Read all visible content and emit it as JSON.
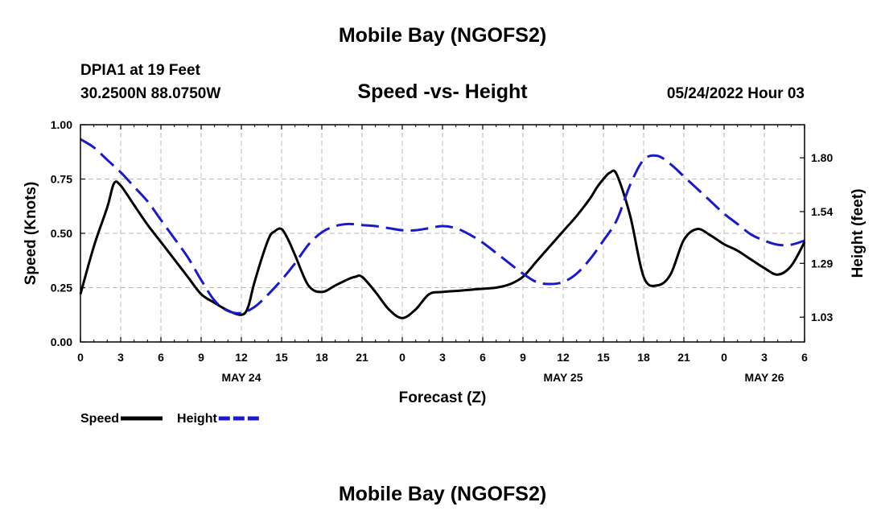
{
  "page": {
    "title_top": "Mobile Bay (NGOFS2)",
    "title_bottom": "Mobile Bay (NGOFS2)",
    "station": "DPIA1 at 19 Feet",
    "coords": "30.2500N  88.0750W",
    "timestamp": "05/24/2022 Hour 03"
  },
  "chart_data": {
    "type": "line",
    "title": "Speed -vs- Height",
    "xlabel": "Forecast (Z)",
    "ylabel_left": "Speed (Knots)",
    "ylabel_right": "Height (feet)",
    "x_unit": "forecast hour from 00Z May 24",
    "xlim": [
      0,
      54
    ],
    "ylim_left": [
      0,
      1
    ],
    "ylim_right": [
      0.91,
      1.96
    ],
    "grid": true,
    "legend_position": "bottom-left",
    "x_tick_values": [
      0,
      3,
      6,
      9,
      12,
      15,
      18,
      21,
      24,
      27,
      30,
      33,
      36,
      39,
      42,
      45,
      48,
      51,
      54
    ],
    "x_tick_labels": [
      "0",
      "3",
      "6",
      "9",
      "12",
      "15",
      "18",
      "21",
      "0",
      "3",
      "6",
      "9",
      "12",
      "15",
      "18",
      "21",
      "0",
      "3",
      "6"
    ],
    "date_labels": [
      {
        "x": 12,
        "label": "MAY 24"
      },
      {
        "x": 36,
        "label": "MAY 25"
      },
      {
        "x": 51,
        "label": "MAY 26"
      }
    ],
    "y_left_ticks": [
      0.0,
      0.25,
      0.5,
      0.75,
      1.0
    ],
    "y_left_tick_labels": [
      "0.00",
      "0.25",
      "0.50",
      "0.75",
      "1.00"
    ],
    "y_right_ticks": [
      1.03,
      1.29,
      1.54,
      1.8
    ],
    "y_right_tick_labels": [
      "1.03",
      "1.29",
      "1.54",
      "1.80"
    ],
    "series": [
      {
        "name": "Speed",
        "axis": "left",
        "color": "#000000",
        "dash": "solid",
        "x": [
          0,
          1,
          2,
          2.5,
          3,
          4,
          5,
          6,
          7,
          8,
          9,
          10,
          11,
          12,
          12.5,
          13,
          14,
          14.5,
          15,
          15.5,
          16,
          17,
          18,
          19,
          20,
          20.5,
          21,
          22,
          23,
          24,
          25,
          26,
          27,
          28,
          29,
          30,
          31,
          32,
          33,
          34,
          35,
          36,
          37,
          38,
          38.5,
          39,
          39.5,
          40,
          41,
          42,
          43,
          44,
          45,
          46,
          47,
          48,
          49,
          50,
          51,
          52,
          53,
          54
        ],
        "values": [
          0.22,
          0.44,
          0.62,
          0.73,
          0.72,
          0.63,
          0.54,
          0.46,
          0.38,
          0.3,
          0.22,
          0.18,
          0.145,
          0.125,
          0.16,
          0.28,
          0.47,
          0.51,
          0.52,
          0.47,
          0.4,
          0.26,
          0.23,
          0.26,
          0.29,
          0.3,
          0.3,
          0.23,
          0.15,
          0.11,
          0.15,
          0.22,
          0.23,
          0.235,
          0.24,
          0.245,
          0.25,
          0.265,
          0.3,
          0.37,
          0.44,
          0.51,
          0.58,
          0.66,
          0.71,
          0.75,
          0.78,
          0.77,
          0.58,
          0.3,
          0.26,
          0.31,
          0.47,
          0.52,
          0.49,
          0.45,
          0.42,
          0.38,
          0.34,
          0.31,
          0.35,
          0.46
        ]
      },
      {
        "name": "Height",
        "axis": "right",
        "color": "#1a1acc",
        "dash": "dashed",
        "x": [
          0,
          1,
          2,
          3,
          4,
          5,
          6,
          7,
          8,
          9,
          10,
          11,
          12,
          13,
          14,
          15,
          16,
          17,
          18,
          19,
          20,
          21,
          22,
          23,
          24,
          25,
          26,
          27,
          28,
          29,
          30,
          31,
          32,
          33,
          34,
          35,
          36,
          37,
          38,
          39,
          40,
          41,
          42,
          43,
          44,
          45,
          46,
          47,
          48,
          49,
          50,
          51,
          52,
          53,
          54
        ],
        "values": [
          1.89,
          1.85,
          1.79,
          1.73,
          1.66,
          1.59,
          1.5,
          1.41,
          1.32,
          1.21,
          1.11,
          1.06,
          1.05,
          1.08,
          1.14,
          1.21,
          1.29,
          1.38,
          1.44,
          1.47,
          1.48,
          1.475,
          1.47,
          1.46,
          1.45,
          1.45,
          1.46,
          1.47,
          1.46,
          1.43,
          1.39,
          1.34,
          1.29,
          1.24,
          1.2,
          1.19,
          1.2,
          1.24,
          1.31,
          1.4,
          1.5,
          1.67,
          1.79,
          1.81,
          1.77,
          1.71,
          1.65,
          1.59,
          1.53,
          1.48,
          1.43,
          1.4,
          1.38,
          1.38,
          1.4
        ]
      }
    ]
  }
}
